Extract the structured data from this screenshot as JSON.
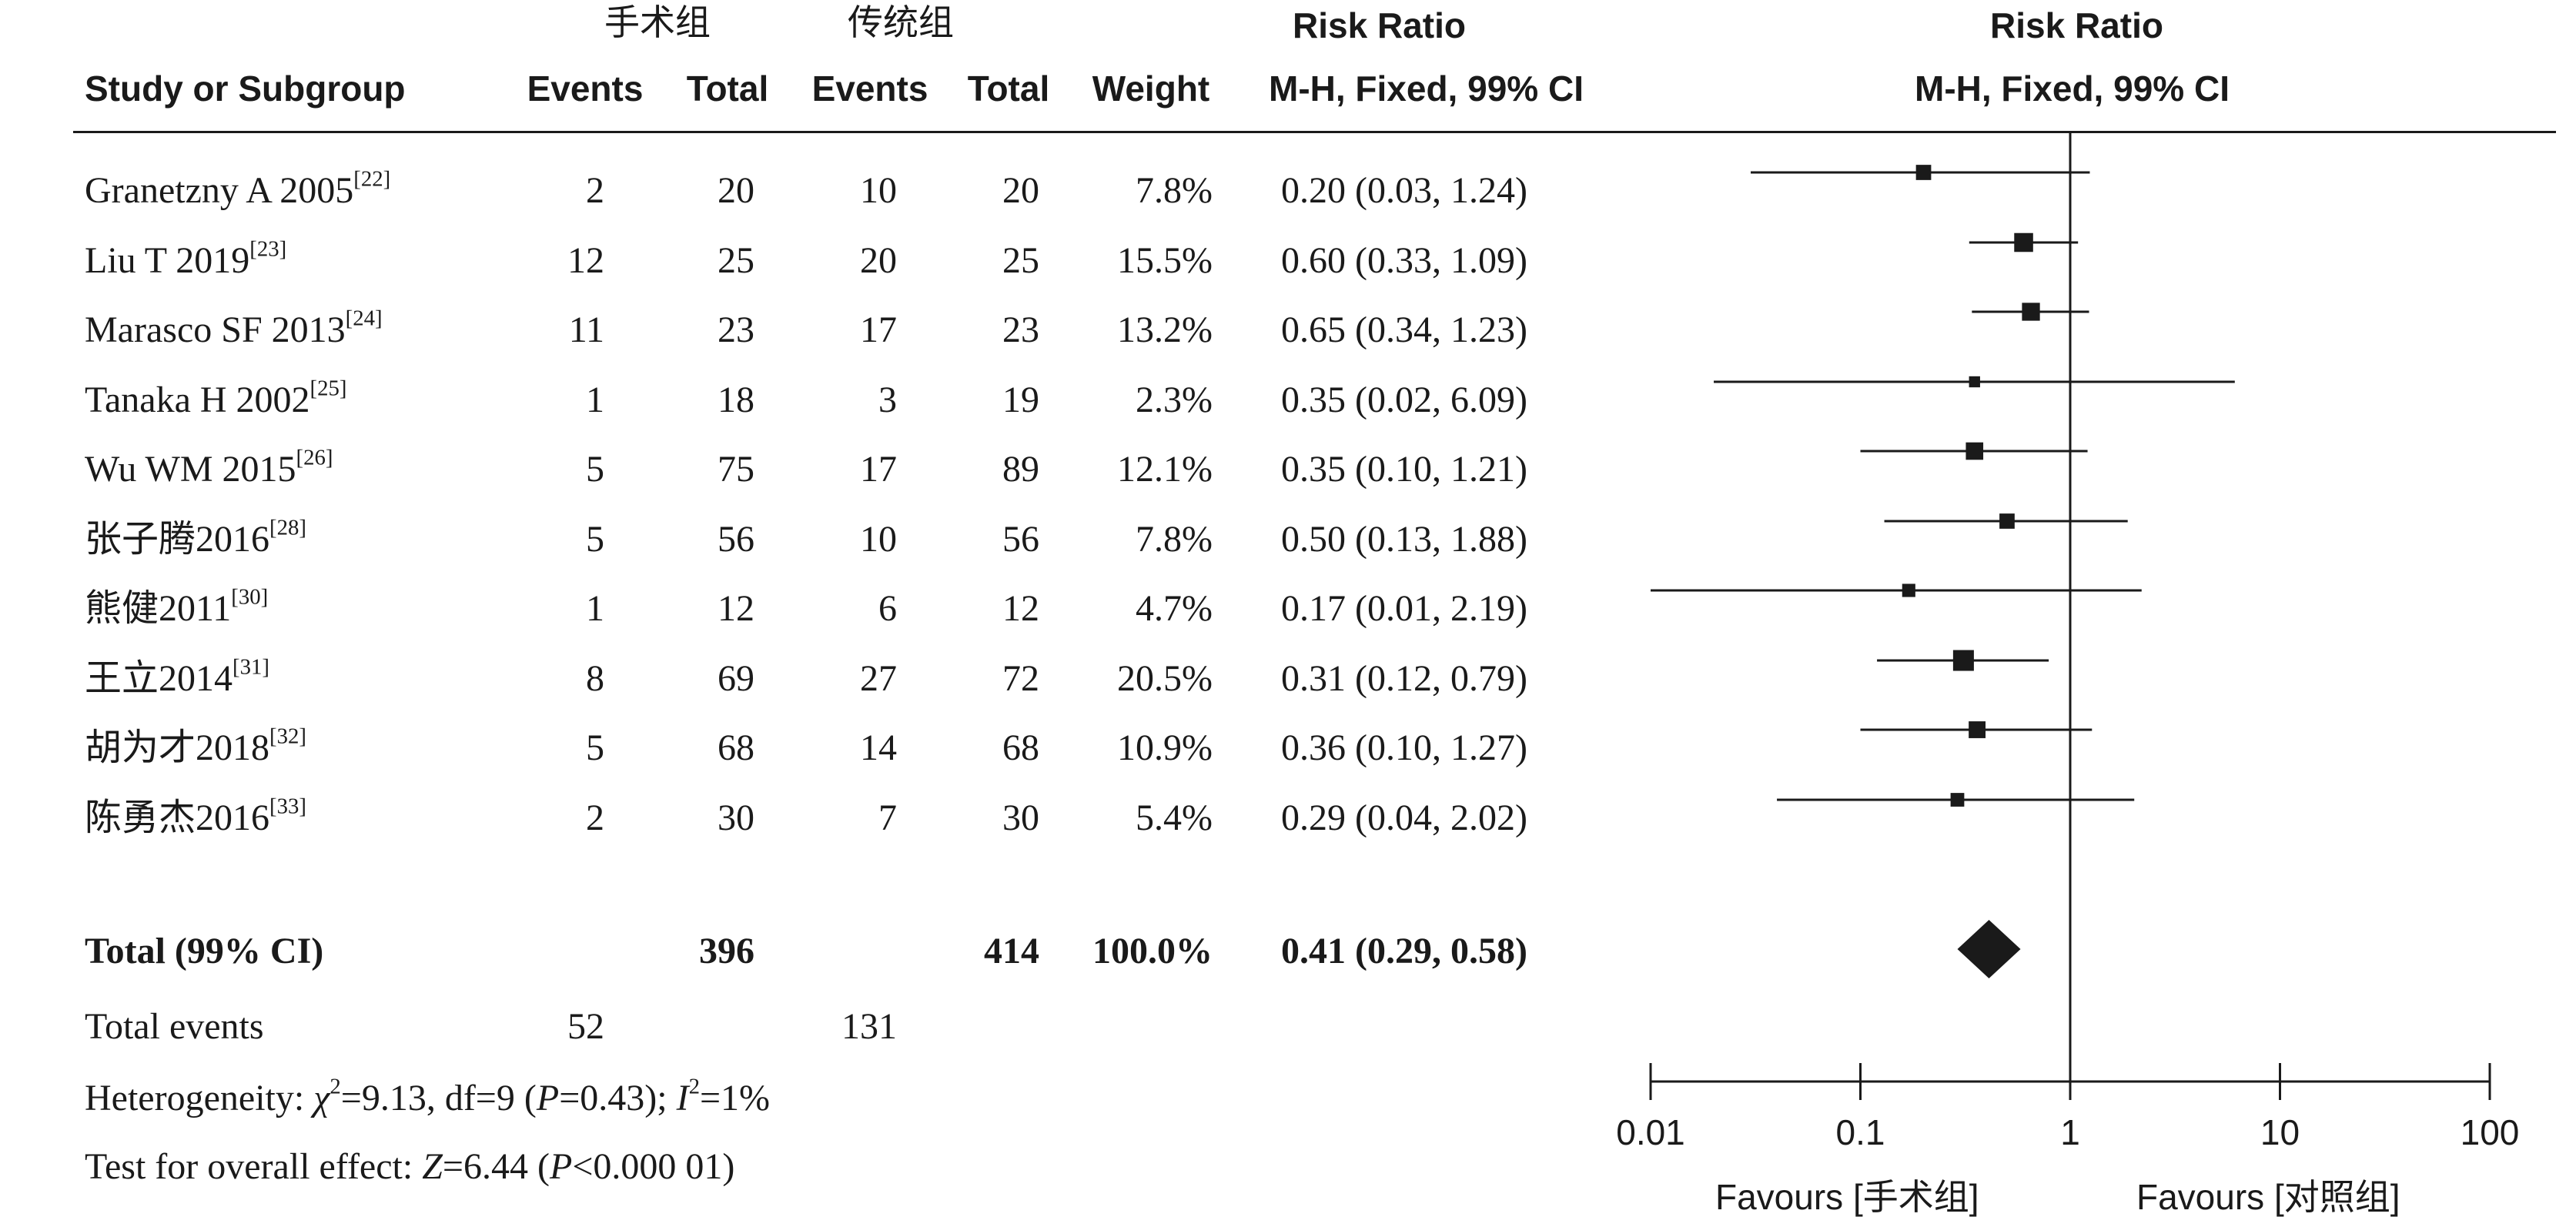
{
  "headers": {
    "group_exp": "手术组",
    "group_ctrl": "传统组",
    "study": "Study or Subgroup",
    "events": "Events",
    "total": "Total",
    "weight": "Weight",
    "rr_title": "Risk Ratio",
    "rr_method": "M-H, Fixed, 99% CI"
  },
  "studies": [
    {
      "name": "Granetzny A 2005",
      "ref": "[22]",
      "e_events": "2",
      "e_total": "20",
      "c_events": "10",
      "c_total": "20",
      "weight": "7.8%",
      "ci_text": "0.20 (0.03, 1.24)",
      "rr": 0.2,
      "lo": 0.03,
      "hi": 1.24,
      "w": 7.8
    },
    {
      "name": "Liu T 2019",
      "ref": "[23]",
      "e_events": "12",
      "e_total": "25",
      "c_events": "20",
      "c_total": "25",
      "weight": "15.5%",
      "ci_text": "0.60 (0.33, 1.09)",
      "rr": 0.6,
      "lo": 0.33,
      "hi": 1.09,
      "w": 15.5
    },
    {
      "name": "Marasco SF 2013",
      "ref": "[24]",
      "e_events": "11",
      "e_total": "23",
      "c_events": "17",
      "c_total": "23",
      "weight": "13.2%",
      "ci_text": "0.65 (0.34, 1.23)",
      "rr": 0.65,
      "lo": 0.34,
      "hi": 1.23,
      "w": 13.2
    },
    {
      "name": "Tanaka H 2002",
      "ref": "[25]",
      "e_events": "1",
      "e_total": "18",
      "c_events": "3",
      "c_total": "19",
      "weight": "2.3%",
      "ci_text": "0.35 (0.02, 6.09)",
      "rr": 0.35,
      "lo": 0.02,
      "hi": 6.09,
      "w": 2.3
    },
    {
      "name": "Wu WM 2015",
      "ref": "[26]",
      "e_events": "5",
      "e_total": "75",
      "c_events": "17",
      "c_total": "89",
      "weight": "12.1%",
      "ci_text": "0.35 (0.10, 1.21)",
      "rr": 0.35,
      "lo": 0.1,
      "hi": 1.21,
      "w": 12.1
    },
    {
      "name": "张子腾2016",
      "ref": "[28]",
      "e_events": "5",
      "e_total": "56",
      "c_events": "10",
      "c_total": "56",
      "weight": "7.8%",
      "ci_text": "0.50 (0.13, 1.88)",
      "rr": 0.5,
      "lo": 0.13,
      "hi": 1.88,
      "w": 7.8
    },
    {
      "name": "熊健2011",
      "ref": "[30]",
      "e_events": "1",
      "e_total": "12",
      "c_events": "6",
      "c_total": "12",
      "weight": "4.7%",
      "ci_text": "0.17 (0.01, 2.19)",
      "rr": 0.17,
      "lo": 0.01,
      "hi": 2.19,
      "w": 4.7
    },
    {
      "name": "王立2014",
      "ref": "[31]",
      "e_events": "8",
      "e_total": "69",
      "c_events": "27",
      "c_total": "72",
      "weight": "20.5%",
      "ci_text": "0.31 (0.12, 0.79)",
      "rr": 0.31,
      "lo": 0.12,
      "hi": 0.79,
      "w": 20.5
    },
    {
      "name": "胡为才2018",
      "ref": "[32]",
      "e_events": "5",
      "e_total": "68",
      "c_events": "14",
      "c_total": "68",
      "weight": "10.9%",
      "ci_text": "0.36 (0.10, 1.27)",
      "rr": 0.36,
      "lo": 0.1,
      "hi": 1.27,
      "w": 10.9
    },
    {
      "name": "陈勇杰2016",
      "ref": "[33]",
      "e_events": "2",
      "e_total": "30",
      "c_events": "7",
      "c_total": "30",
      "weight": "5.4%",
      "ci_text": "0.29 (0.04, 2.02)",
      "rr": 0.29,
      "lo": 0.04,
      "hi": 2.02,
      "w": 5.4
    }
  ],
  "total": {
    "label": "Total (99% CI)",
    "e_total": "396",
    "c_total": "414",
    "weight": "100.0%",
    "ci_text": "0.41 (0.29, 0.58)",
    "rr": 0.41,
    "lo": 0.29,
    "hi": 0.58
  },
  "total_events": {
    "label": "Total events",
    "e_events": "52",
    "c_events": "131"
  },
  "heterogeneity": {
    "prefix": "Heterogeneity: ",
    "chi": "χ",
    "chi_sup": "2",
    "chi_rest": "=9.13, df=9 (",
    "p": "P",
    "p_rest": "=0.43); ",
    "i": "I",
    "i_sup": "2",
    "i_rest": "=1%"
  },
  "overall_effect": {
    "prefix": "Test for overall effect: ",
    "z": "Z",
    "z_rest": "=6.44 (",
    "p": "P",
    "p_rest": "<0.000 01)"
  },
  "chart_data": {
    "type": "forest",
    "title": "Risk Ratio",
    "subtitle": "M-H, Fixed, 99% CI",
    "x_scale": "log",
    "xlim": [
      0.01,
      100
    ],
    "ticks": [
      0.01,
      0.1,
      1,
      10,
      100
    ],
    "tick_labels": [
      "0.01",
      "0.1",
      "1",
      "10",
      "100"
    ],
    "null_line": 1,
    "favours_left": "Favours [手术组]",
    "favours_right": "Favours [对照组]"
  }
}
